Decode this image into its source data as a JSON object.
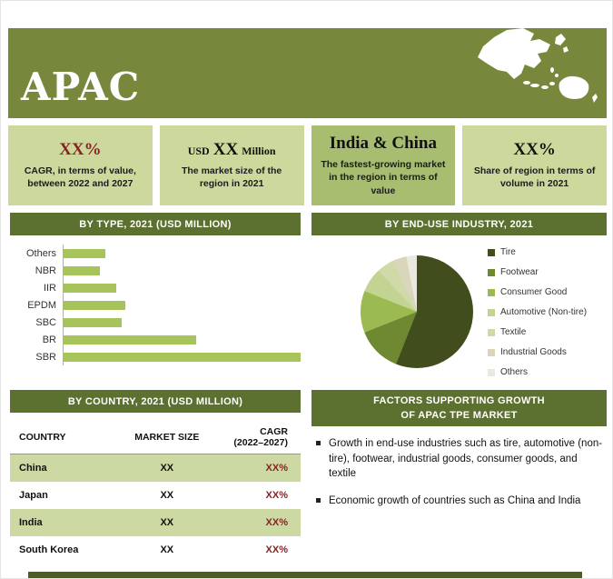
{
  "header": {
    "title": "APAC"
  },
  "colors": {
    "header_bg": "#77883c",
    "section_bar_bg": "#5c7030",
    "stat_bg_light": "#ccd89c",
    "stat_bg_dark": "#a9bd71",
    "accent_maroon": "#8a2125",
    "bar_color": "#a6c35c",
    "table_stripe": "#cdd9a3",
    "footer_bar": "#4d5c24"
  },
  "stats": [
    {
      "value": "XX%",
      "desc": "CAGR, in terms of value, between 2022 and 2027"
    },
    {
      "value_prefix": "USD",
      "value": "XX",
      "value_suffix": "Million",
      "desc": "The market size of the region in 2021"
    },
    {
      "value": "India & China",
      "desc": "The fastest-growing market in the region in terms of value"
    },
    {
      "value": "XX%",
      "desc": "Share of region in terms of volume in 2021"
    }
  ],
  "factors": {
    "title_line1": "FACTORS SUPPORTING GROWTH",
    "title_line2": "OF APAC TPE MARKET",
    "bullets": [
      "Growth in end-use industries such as tire, automotive (non-tire), footwear, industrial goods, consumer goods, and textile",
      "Economic growth of countries such as China and India"
    ]
  },
  "chart_data": [
    {
      "type": "bar",
      "orientation": "horizontal",
      "title": "BY TYPE, 2021  (USD MILLION)",
      "categories": [
        "Others",
        "NBR",
        "IIR",
        "EPDM",
        "SBC",
        "BR",
        "SBR"
      ],
      "values": [
        30,
        26,
        38,
        44,
        42,
        95,
        170
      ],
      "values_estimated": true,
      "value_labels": "not shown (values masked as XX in source)",
      "bar_color": "#a6c35c",
      "grid": false
    },
    {
      "type": "pie",
      "title": "BY  END-USE INDUSTRY, 2021",
      "labels": [
        "Tire",
        "Footwear",
        "Consumer Good",
        "Automotive (Non-tire)",
        "Textile",
        "Industrial Goods",
        "Others"
      ],
      "values": [
        56,
        13,
        12,
        7,
        5,
        4,
        3
      ],
      "values_estimated": true,
      "colors": [
        "#414d1c",
        "#6f8933",
        "#9cba52",
        "#c3d492",
        "#cfdaa8",
        "#d9d6bc",
        "#eae9e0"
      ],
      "legend_position": "right"
    },
    {
      "type": "table",
      "title": "BY COUNTRY, 2021  (USD MILLION)",
      "columns": [
        "COUNTRY",
        "MARKET SIZE",
        "CAGR"
      ],
      "columns_sub": [
        "",
        "",
        "(2022–2027)"
      ],
      "rows": [
        [
          "China",
          "XX",
          "XX%"
        ],
        [
          "Japan",
          "XX",
          "XX%"
        ],
        [
          "India",
          "XX",
          "XX%"
        ],
        [
          "South Korea",
          "XX",
          "XX%"
        ]
      ]
    }
  ]
}
